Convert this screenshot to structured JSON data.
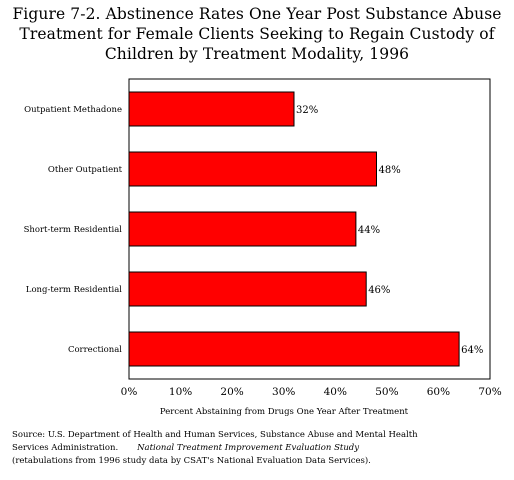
{
  "figure": {
    "title_lines": [
      "Figure 7-2.  Abstinence Rates One Year Post Substance Abuse",
      "Treatment for Female Clients Seeking to Regain Custody of",
      "Children by Treatment Modality, 1996"
    ]
  },
  "chart_data": {
    "type": "bar",
    "orientation": "horizontal",
    "title": "Figure 7-2.  Abstinence Rates One Year Post Substance Abuse Treatment for Female Clients Seeking to Regain Custody of Children by Treatment Modality, 1996",
    "categories": [
      "Outpatient Methadone",
      "Other Outpatient",
      "Short-term Residential",
      "Long-term Residential",
      "Correctional"
    ],
    "values": [
      32,
      48,
      44,
      46,
      64
    ],
    "value_labels": [
      "32%",
      "48%",
      "44%",
      "46%",
      "64%"
    ],
    "xlabel": "Percent Abstaining from Drugs One Year After Treatment",
    "ylabel": "",
    "xlim": [
      0,
      70
    ],
    "xticks": [
      0,
      10,
      20,
      30,
      40,
      50,
      60,
      70
    ],
    "xtick_labels": [
      "0%",
      "10%",
      "20%",
      "30%",
      "40%",
      "50%",
      "60%",
      "70%"
    ],
    "grid": false,
    "bar_color": "#ff0000",
    "bar_edge_color": "#000000"
  },
  "source": {
    "line1_prefix": "Source:  U.S. Department of Health and Human Services, Substance Abuse and Mental Health",
    "line2_prefix": "Services  Administration.",
    "line2_italic": "National Treatment Improvement Evaluation Study",
    "line3": "(retabulations from 1996 study data by CSAT's National Evaluation Data Services)."
  }
}
